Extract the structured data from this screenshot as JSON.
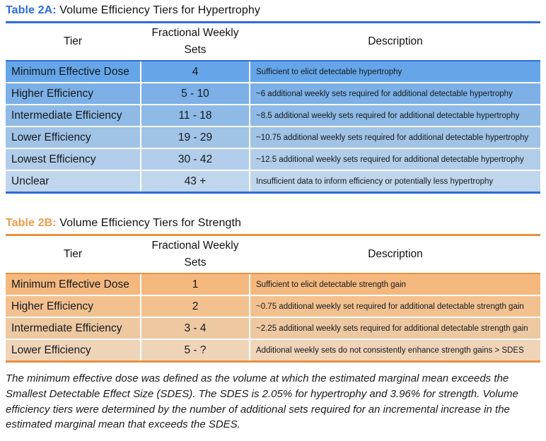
{
  "page": {
    "background": "#ffffff"
  },
  "tables": [
    {
      "title_label": "Table 2A:",
      "title_text": "Volume Efficiency Tiers for Hypertrophy",
      "accent_text_color": "#2b6cd9",
      "rule_color": "#2d6cd5",
      "columns": [
        "Tier",
        "Fractional Weekly Sets",
        "Description"
      ],
      "rows": [
        {
          "tier": "Minimum Effective Dose",
          "sets": "4",
          "description": "Sufficient to elicit detectable hypertrophy",
          "bg": "#66a6e8"
        },
        {
          "tier": "Higher Efficiency",
          "sets": "5 - 10",
          "description": "~6 additional weekly sets required for additional detectable hypertrophy",
          "bg": "#7cb0e6"
        },
        {
          "tier": "Intermediate Efficiency",
          "sets": "11 - 18",
          "description": "~8.5 additional weekly sets required for additional detectable hypertrophy",
          "bg": "#8ebae5"
        },
        {
          "tier": "Lower Efficiency",
          "sets": "19 - 29",
          "description": "~10.75 additional weekly sets required for additional detectable hypertrophy",
          "bg": "#a0c3e6"
        },
        {
          "tier": "Lowest Efficiency",
          "sets": "30 - 42",
          "description": "~12.5 additional weekly sets required for additional detectable hypertrophy",
          "bg": "#b1cde9"
        },
        {
          "tier": "Unclear",
          "sets": "43 +",
          "description": "Insufficient data to inform efficiency or potentially less hypertrophy",
          "bg": "#c0d6ec"
        }
      ]
    },
    {
      "title_label": "Table 2B:",
      "title_text": "Volume Efficiency Tiers for Strength",
      "accent_text_color": "#ee9c49",
      "rule_color": "#e8913f",
      "columns": [
        "Tier",
        "Fractional Weekly Sets",
        "Description"
      ],
      "rows": [
        {
          "tier": "Minimum Effective Dose",
          "sets": "1",
          "description": "Sufficient to elicit detectable strength gain",
          "bg": "#f4b87e"
        },
        {
          "tier": "Higher Efficiency",
          "sets": "2",
          "description": "~0.75 additional weekly set required for additional detectable strength gain",
          "bg": "#f3c18f"
        },
        {
          "tier": "Intermediate Efficiency",
          "sets": "3 - 4",
          "description": "~2.25 additional weekly sets required for additional detectable strength gain",
          "bg": "#edc8a0"
        },
        {
          "tier": "Lower Efficiency",
          "sets": "5 - ?",
          "description": "Additional weekly sets do not consistently enhance strength gains > SDES",
          "bg": "#f0d4b8"
        }
      ]
    }
  ],
  "footnote": "The minimum effective dose was defined as the volume at which the estimated marginal mean exceeds the Smallest Detectable Effect Size (SDES). The SDES is 2.05% for hypertrophy and 3.96% for strength. Volume efficiency tiers were determined by the number of additional sets required for an incremental increase in the estimated marginal mean that exceeds the SDES."
}
